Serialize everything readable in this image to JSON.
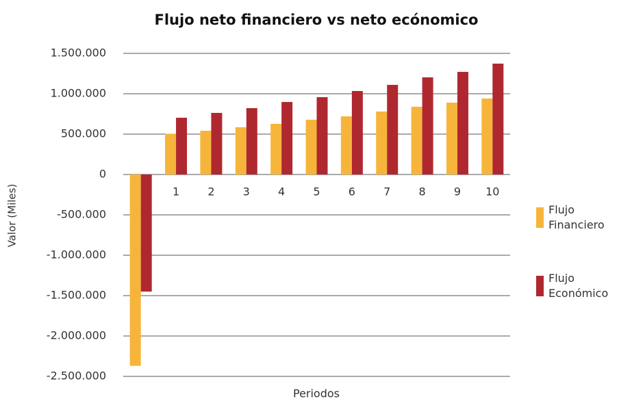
{
  "chart_data": {
    "type": "bar",
    "title": "Flujo neto financiero vs neto ecónomico",
    "x_label": "Periodos",
    "y_label": "Valor (Miles)",
    "categories": [
      null,
      "1",
      "2",
      "3",
      "4",
      "5",
      "6",
      "7",
      "8",
      "9",
      "10"
    ],
    "series": [
      {
        "name": "Flujo Financiero",
        "color": "#f6b53a",
        "values": [
          -2370000,
          505000,
          542000,
          585000,
          627000,
          678000,
          720000,
          780000,
          839000,
          890000,
          941000
        ]
      },
      {
        "name": "Flujo Económico",
        "color": "#b0282f",
        "values": [
          -1450000,
          703000,
          763000,
          822000,
          898000,
          958000,
          1034000,
          1110000,
          1203000,
          1271000,
          1373000
        ]
      }
    ],
    "ylim": [
      -2500000,
      1500000
    ],
    "yticks": [
      {
        "value": -2500000,
        "label": "-2.500.000"
      },
      {
        "value": -2000000,
        "label": "-2.000.000"
      },
      {
        "value": -1500000,
        "label": "-1.500.000"
      },
      {
        "value": -1000000,
        "label": "-1.000.000"
      },
      {
        "value": -500000,
        "label": "-500.000"
      },
      0,
      {
        "value": 500000,
        "label": "500.000"
      },
      {
        "value": 1000000,
        "label": "1.000.000"
      },
      {
        "value": 1500000,
        "label": "1.500.000"
      }
    ],
    "grid": true,
    "legend": "right"
  }
}
